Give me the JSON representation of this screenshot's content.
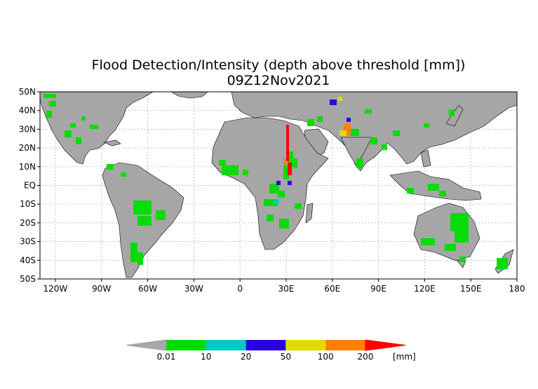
{
  "title": "Flood Detection/Intensity (depth above threshold [mm])",
  "subtitle": "09Z12Nov2021",
  "map": {
    "lon_range": [
      -130,
      180
    ],
    "lat_range": [
      -50,
      50
    ],
    "lat_ticks": [
      {
        "value": 50,
        "label": "50N"
      },
      {
        "value": 40,
        "label": "40N"
      },
      {
        "value": 30,
        "label": "30N"
      },
      {
        "value": 20,
        "label": "20N"
      },
      {
        "value": 10,
        "label": "10N"
      },
      {
        "value": 0,
        "label": "EQ"
      },
      {
        "value": -10,
        "label": "10S"
      },
      {
        "value": -20,
        "label": "20S"
      },
      {
        "value": -30,
        "label": "30S"
      },
      {
        "value": -40,
        "label": "40S"
      },
      {
        "value": -50,
        "label": "50S"
      }
    ],
    "lon_ticks": [
      {
        "value": -120,
        "label": "120W"
      },
      {
        "value": -90,
        "label": "90W"
      },
      {
        "value": -60,
        "label": "60W"
      },
      {
        "value": -30,
        "label": "30W"
      },
      {
        "value": 0,
        "label": "0"
      },
      {
        "value": 30,
        "label": "30E"
      },
      {
        "value": 60,
        "label": "60E"
      },
      {
        "value": 90,
        "label": "90E"
      },
      {
        "value": 120,
        "label": "120E"
      },
      {
        "value": 150,
        "label": "150E"
      },
      {
        "value": 180,
        "label": "180"
      }
    ],
    "grid": true,
    "land_color": "#a6a6a6"
  },
  "colorbar": {
    "under_color": "#a6a6a6",
    "unit": "[mm]",
    "bins": [
      {
        "color": "#00dd00"
      },
      {
        "color": "#00c8c8"
      },
      {
        "color": "#2800e0"
      },
      {
        "color": "#e0dc00"
      },
      {
        "color": "#ff8000"
      }
    ],
    "over_color": "#ff0000",
    "labels": [
      "0.01",
      "10",
      "20",
      "50",
      "100",
      "200"
    ]
  },
  "flood_colors": {
    "low": "#00dd00",
    "mid": "#00c8c8",
    "deep": "#2800e0",
    "high": "#e0dc00",
    "severe": "#ff8000",
    "extreme": "#ff0000"
  }
}
